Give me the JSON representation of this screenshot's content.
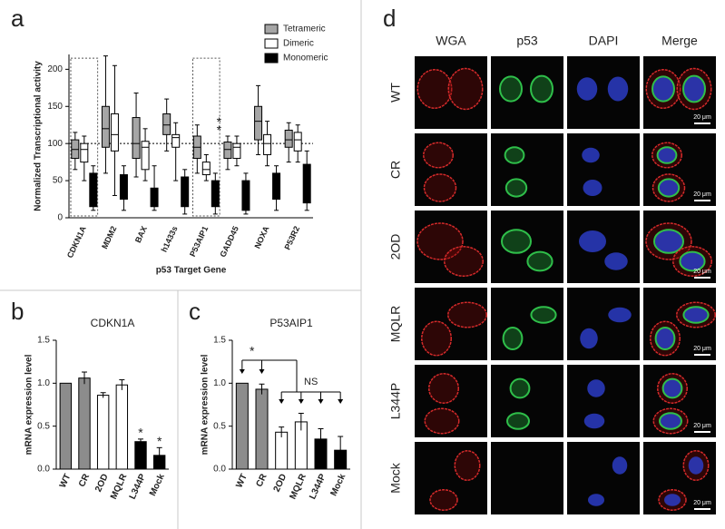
{
  "chart_data": [
    {
      "panel": "a",
      "type": "box",
      "ylabel": "Normalized Transcriptional activity",
      "xlabel": "p53 Target Gene",
      "categories": [
        "CDKN1A",
        "MDM2",
        "BAX",
        "h1433s",
        "P53AIP1",
        "GADD45",
        "NOXA",
        "P53R2"
      ],
      "series": [
        {
          "name": "Tetrameric",
          "color": "#a6a6a6",
          "values": [
            [
              65,
              80,
              92,
              105,
              115
            ],
            [
              60,
              95,
              120,
              150,
              218
            ],
            [
              55,
              80,
              100,
              135,
              168
            ],
            [
              90,
              112,
              125,
              140,
              160
            ],
            [
              60,
              80,
              95,
              110,
              125
            ],
            [
              65,
              80,
              92,
              102,
              110
            ],
            [
              85,
              105,
              130,
              150,
              178
            ],
            [
              75,
              95,
              105,
              118,
              128
            ]
          ]
        },
        {
          "name": "Dimeric",
          "color": "#ffffff",
          "values": [
            [
              50,
              75,
              92,
              100,
              110
            ],
            [
              30,
              90,
              112,
              140,
              205
            ],
            [
              50,
              65,
              95,
              103,
              120
            ],
            [
              50,
              95,
              108,
              112,
              128
            ],
            [
              50,
              58,
              65,
              75,
              85
            ],
            [
              70,
              80,
              95,
              100,
              110
            ],
            [
              70,
              85,
              100,
              112,
              130
            ],
            [
              75,
              90,
              105,
              115,
              125
            ]
          ]
        },
        {
          "name": "Monomeric",
          "color": "#000000",
          "values": [
            [
              10,
              15,
              35,
              60,
              70
            ],
            [
              10,
              25,
              40,
              58,
              70
            ],
            [
              10,
              15,
              25,
              40,
              70
            ],
            [
              5,
              15,
              30,
              55,
              65
            ],
            [
              5,
              15,
              30,
              50,
              60
            ],
            [
              5,
              10,
              25,
              50,
              60
            ],
            [
              10,
              25,
              40,
              60,
              70
            ],
            [
              10,
              20,
              40,
              72,
              90
            ]
          ]
        }
      ],
      "ylim": [
        0,
        220
      ],
      "yticks": [
        0,
        50,
        100,
        150,
        200
      ],
      "reference_line": 100,
      "annotations": [
        "*",
        "*"
      ],
      "legend": "upper right"
    },
    {
      "panel": "b",
      "type": "bar",
      "title": "CDKN1A",
      "ylabel": "mRNA expression level",
      "categories": [
        "WT",
        "CR",
        "2OD",
        "MQLR",
        "L344P",
        "Mock"
      ],
      "values": [
        1.0,
        1.06,
        0.86,
        0.98,
        0.32,
        0.16
      ],
      "errors": [
        0,
        0.07,
        0.03,
        0.06,
        0.03,
        0.09
      ],
      "colors": [
        "#8c8c8c",
        "#8c8c8c",
        "#ffffff",
        "#ffffff",
        "#000000",
        "#000000"
      ],
      "ylim": [
        0,
        1.5
      ],
      "yticks": [
        {
          "value": 0,
          "label": "0.0"
        },
        0.5,
        {
          "value": 1,
          "label": "1.0"
        },
        1.5
      ],
      "annotations": [
        "*",
        "*"
      ]
    },
    {
      "panel": "c",
      "type": "bar",
      "title": "P53AIP1",
      "ylabel": "mRNA expression level",
      "categories": [
        "WT",
        "CR",
        "2OD",
        "MQLR",
        "L344P",
        "Mock"
      ],
      "values": [
        1.0,
        0.93,
        0.43,
        0.55,
        0.35,
        0.22
      ],
      "errors": [
        0,
        0.06,
        0.06,
        0.1,
        0.12,
        0.16
      ],
      "colors": [
        "#8c8c8c",
        "#8c8c8c",
        "#ffffff",
        "#ffffff",
        "#000000",
        "#000000"
      ],
      "ylim": [
        0,
        1.5
      ],
      "yticks": [
        {
          "value": 0,
          "label": "0.0"
        },
        0.5,
        {
          "value": 1,
          "label": "1.0"
        },
        1.5
      ],
      "annotations": [
        "*",
        "NS"
      ]
    }
  ],
  "panel_d": {
    "panel": "d",
    "columns": [
      "WGA",
      "p53",
      "DAPI",
      "Merge"
    ],
    "rows": [
      "WT",
      "CR",
      "2OD",
      "MQLR",
      "L344P",
      "Mock"
    ],
    "scale_bar": "20 μm"
  }
}
